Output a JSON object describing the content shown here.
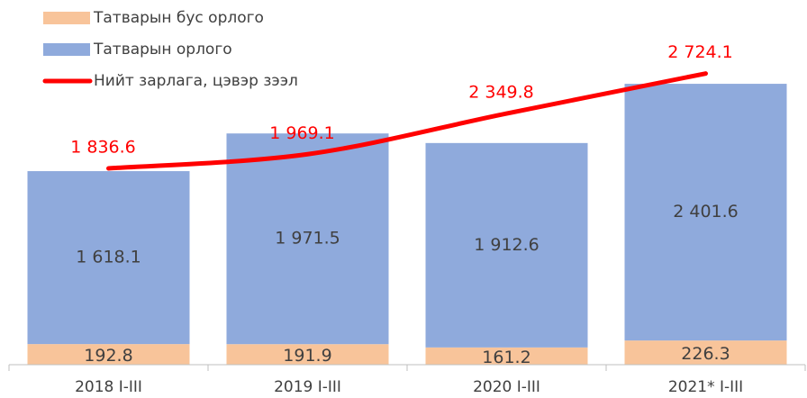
{
  "chart_data": {
    "type": "bar",
    "categories": [
      "2018 I-III",
      "2019 I-III",
      "2020 I-III",
      "2021* I-III"
    ],
    "series": [
      {
        "name": "Татварын бус орлого",
        "color": "#F8C49A",
        "values": [
          192.8,
          191.9,
          161.2,
          226.3
        ],
        "value_labels": [
          "192.8",
          "191.9",
          "161.2",
          "226.3"
        ]
      },
      {
        "name": "Татварын орлого",
        "color": "#8FAADC",
        "values": [
          1618.1,
          1971.5,
          1912.6,
          2401.6
        ],
        "value_labels": [
          "1 618.1",
          "1 971.5",
          "1 912.6",
          "2 401.6"
        ]
      },
      {
        "name": "Нийт зарлага, цэвэр зээл",
        "type": "line",
        "color": "#FF0000",
        "values": [
          1836.6,
          1969.1,
          2349.8,
          2724.1
        ],
        "value_labels": [
          "1 836.6",
          "1 969.1",
          "2 349.8",
          "2 724.1"
        ]
      }
    ]
  }
}
